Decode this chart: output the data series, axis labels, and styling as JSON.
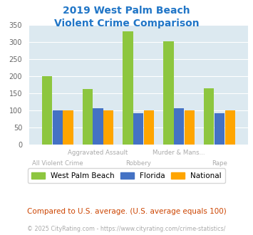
{
  "title_line1": "2019 West Palm Beach",
  "title_line2": "Violent Crime Comparison",
  "categories": [
    "All Violent Crime",
    "Aggravated Assault",
    "Robbery",
    "Murder & Mans...",
    "Rape"
  ],
  "wpb_values": [
    200,
    163,
    330,
    302,
    165
  ],
  "florida_values": [
    100,
    105,
    92,
    105,
    92
  ],
  "national_values": [
    100,
    100,
    100,
    100,
    100
  ],
  "wpb_color": "#8dc63f",
  "florida_color": "#4472c4",
  "national_color": "#ffa500",
  "ylim": [
    0,
    350
  ],
  "yticks": [
    0,
    50,
    100,
    150,
    200,
    250,
    300,
    350
  ],
  "bg_color": "#dce9f0",
  "fig_bg": "#ffffff",
  "title_color": "#2176c7",
  "label_color": "#aaaaaa",
  "footer_note": "Compared to U.S. average. (U.S. average equals 100)",
  "footer_copy": "© 2025 CityRating.com - https://www.cityrating.com/crime-statistics/",
  "legend_labels": [
    "West Palm Beach",
    "Florida",
    "National"
  ],
  "row1_labels": [
    "",
    "Aggravated Assault",
    "",
    "Murder & Mans...",
    ""
  ],
  "row2_labels": [
    "All Violent Crime",
    "",
    "Robbery",
    "",
    "Rape"
  ]
}
